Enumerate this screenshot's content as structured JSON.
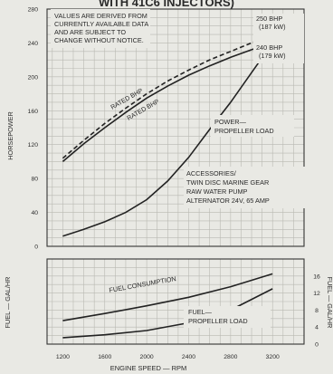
{
  "chart_data": {
    "type": "line",
    "title_fragment": "WITH 41C6 INJECTORS)",
    "note_lines": [
      "VALUES ARE DERIVED FROM",
      "CURRENTLY AVAILABLE DATA",
      "AND ARE SUBJECT TO",
      "CHANGE WITHOUT NOTICE."
    ],
    "xlabel": "ENGINE SPEED — RPM",
    "ylabel": "HORSEPOWER",
    "y2label": "FUEL — GAL/HR",
    "y2label_right": "FUEL — GAL/HR",
    "x_ticks": [
      1200,
      1600,
      2000,
      2400,
      2800,
      3200
    ],
    "xlim": [
      1050,
      3500
    ],
    "y_ticks": [
      0,
      40,
      80,
      120,
      160,
      200,
      240,
      280
    ],
    "ylim": [
      0,
      280
    ],
    "fuel_ticks": [
      0,
      4,
      8,
      12,
      16
    ],
    "fuel_ylim": [
      0,
      20
    ],
    "series": [
      {
        "name": "RATED BHP",
        "dashed": true,
        "x": [
          1200,
          1400,
          1600,
          1800,
          2000,
          2200,
          2400,
          2600,
          2800,
          3000,
          3200
        ],
        "y": [
          104,
          125,
          145,
          163,
          180,
          195,
          208,
          220,
          230,
          240,
          250
        ]
      },
      {
        "name": "RATED BHP",
        "dashed": false,
        "x": [
          1200,
          1400,
          1600,
          1800,
          2000,
          2200,
          2400,
          2600,
          2800,
          3000,
          3200
        ],
        "y": [
          100,
          121,
          140,
          158,
          175,
          189,
          202,
          213,
          223,
          232,
          240
        ]
      },
      {
        "name": "POWER— PROPELLER LOAD",
        "x": [
          1200,
          1400,
          1600,
          1800,
          2000,
          2200,
          2400,
          2600,
          2800,
          3000,
          3200
        ],
        "y": [
          12,
          20,
          29,
          40,
          55,
          77,
          105,
          138,
          170,
          205,
          240
        ]
      },
      {
        "name": "FUEL CONSUMPTION",
        "axis": "fuel",
        "x": [
          1200,
          1600,
          2000,
          2400,
          2800,
          3200
        ],
        "y": [
          5.5,
          7.2,
          9.0,
          11.0,
          13.5,
          16.5
        ]
      },
      {
        "name": "FUEL— PROPELLER LOAD",
        "axis": "fuel",
        "x": [
          1200,
          1600,
          2000,
          2400,
          2800,
          3200
        ],
        "y": [
          1.5,
          2.2,
          3.2,
          5.0,
          8.0,
          13.0
        ]
      }
    ],
    "labels": {
      "rated_upper": "RATED BHP",
      "rated_lower": "RATED BHP",
      "bhp_250": "250 BHP",
      "kw_187": "(187 kW)",
      "bhp_240": "240 BHP",
      "kw_179": "(179 kW)",
      "power_line1": "POWER—",
      "power_line2": "PROPELLER LOAD",
      "acc_line1": "ACCESSORIES/",
      "acc_line2": "TWIN DISC MARINE GEAR",
      "acc_line3": "RAW WATER PUMP",
      "acc_line4": "ALTERNATOR 24V, 65 AMP",
      "fuel_consumption": "FUEL CONSUMPTION",
      "fuel_prop_line1": "FUEL—",
      "fuel_prop_line2": "PROPELLER LOAD"
    },
    "grid": true
  }
}
